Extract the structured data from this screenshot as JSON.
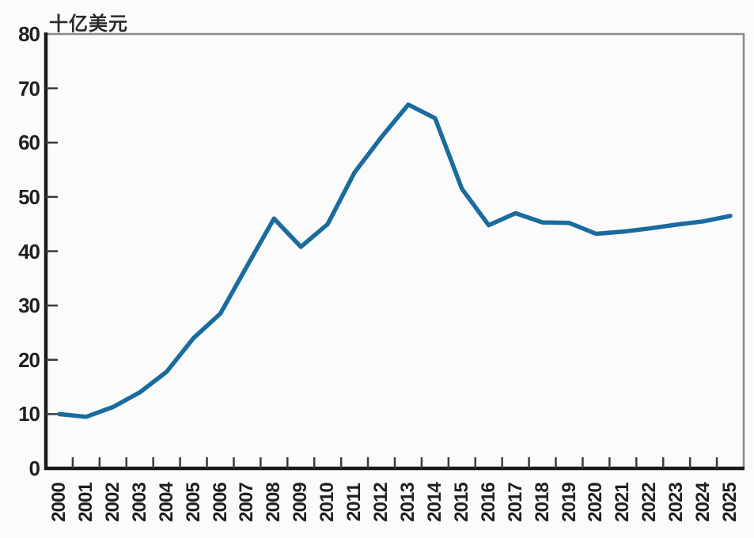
{
  "chart_data": {
    "type": "line",
    "title": "",
    "unit_label": "十亿美元",
    "categories": [
      "2000",
      "2001",
      "2002",
      "2003",
      "2004",
      "2005",
      "2006",
      "2007",
      "2008",
      "2009",
      "2010",
      "2011",
      "2012",
      "2013",
      "2014",
      "2015",
      "2016",
      "2017",
      "2018",
      "2019",
      "2020",
      "2021",
      "2022",
      "2023",
      "2024",
      "2025"
    ],
    "series": [
      {
        "name": "value",
        "values": [
          10,
          9.5,
          11.3,
          14,
          17.8,
          24,
          28.5,
          37.3,
          46,
          40.8,
          45,
          54.5,
          61,
          67,
          64.5,
          51.5,
          44.8,
          47,
          45.3,
          45.2,
          43.2,
          43.6,
          44.2,
          44.9,
          45.5,
          46.5
        ]
      }
    ],
    "xlabel": "",
    "ylabel": "十亿美元",
    "ylim": [
      0,
      80
    ],
    "yticks": [
      0,
      10,
      20,
      30,
      40,
      50,
      60,
      70,
      80
    ],
    "grid": "off",
    "legend": "none",
    "line_color": "#1a6b9e",
    "axis_color": "#1a1a1a",
    "border_color": "#8a8a8a",
    "text_color": "#1f1f1f"
  }
}
